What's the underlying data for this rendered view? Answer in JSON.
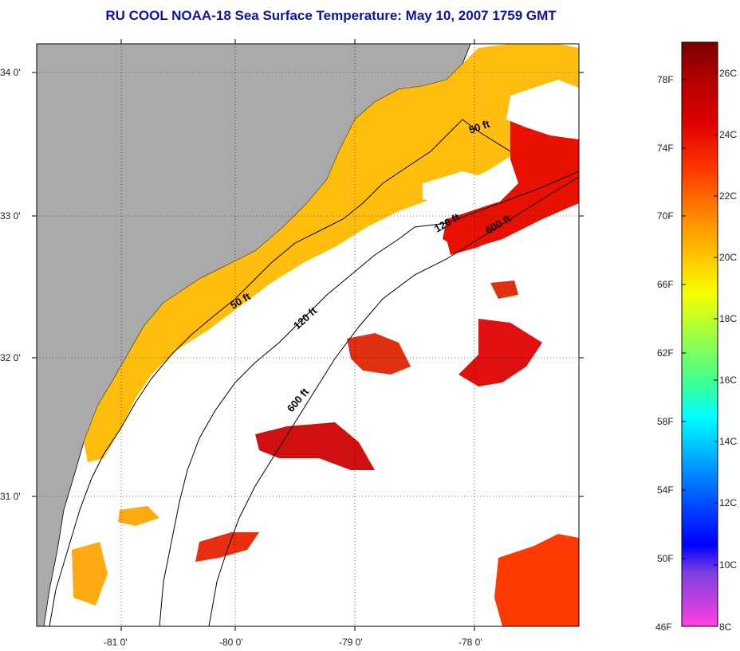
{
  "title": "RU COOL  NOAA-18  Sea Surface Temperature:  May 10, 2007 1759 GMT",
  "map": {
    "latitude_labels": [
      "34 0'",
      "33 0'",
      "32 0'",
      "31 0'"
    ],
    "longitude_labels": [
      "-81 0'",
      "-80 0'",
      "-79 0'",
      "-78 0'"
    ],
    "contour_labels": [
      "50 ft",
      "120 ft",
      "600 ft",
      "50 ft",
      "120 ft",
      "600 ft"
    ],
    "land_color": "#aaaaaa",
    "no_data_color": "#ffffff"
  },
  "colorbar": {
    "fahrenheit_labels": [
      "78F",
      "74F",
      "70F",
      "66F",
      "62F",
      "58F",
      "54F",
      "50F",
      "46F"
    ],
    "celsius_labels": [
      "26C",
      "24C",
      "22C",
      "20C",
      "18C",
      "16C",
      "14C",
      "12C",
      "10C",
      "8C"
    ],
    "gradient_stops": [
      "#7a0000",
      "#d40000",
      "#ff2a00",
      "#ff8a00",
      "#ffd000",
      "#f5ff00",
      "#a0ff40",
      "#40ff90",
      "#00ffff",
      "#00a0ff",
      "#0040ff",
      "#0000ff",
      "#8040e0",
      "#ff40e0"
    ]
  }
}
